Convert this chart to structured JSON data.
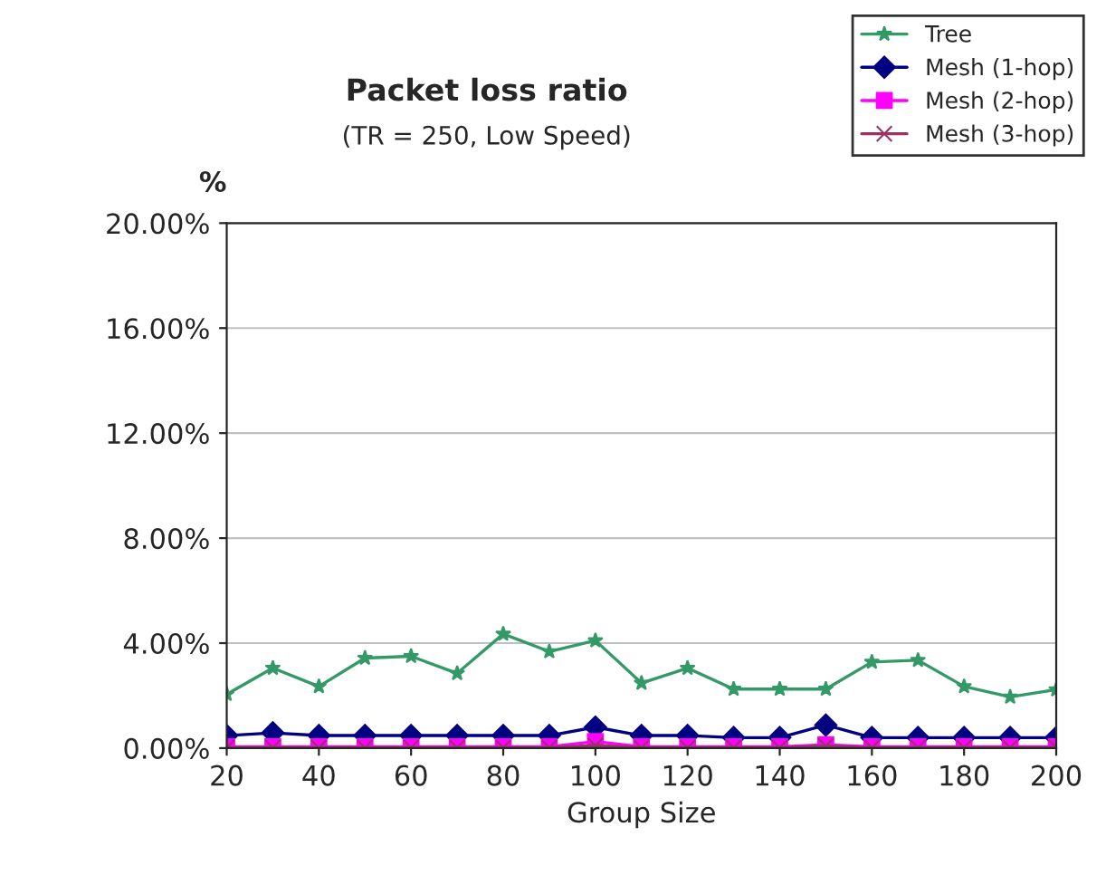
{
  "chart_data": {
    "type": "line",
    "title": "Packet loss ratio",
    "subtitle": "(TR = 250, Low Speed)",
    "xlabel": "Group Size",
    "ylabel": "%",
    "x": [
      20,
      30,
      40,
      50,
      60,
      70,
      80,
      90,
      100,
      110,
      120,
      130,
      140,
      150,
      160,
      170,
      180,
      190,
      200
    ],
    "xlim": [
      20,
      200
    ],
    "xticks": [
      20,
      40,
      60,
      80,
      100,
      120,
      140,
      160,
      180,
      200
    ],
    "ylim": [
      0,
      20
    ],
    "yticks": [
      {
        "value": 0,
        "label": "0.00%"
      },
      {
        "value": 4,
        "label": "4.00%"
      },
      {
        "value": 8,
        "label": "8.00%"
      },
      {
        "value": 12,
        "label": "12.00%"
      },
      {
        "value": 16,
        "label": "16.00%"
      },
      {
        "value": 20,
        "label": "20.00%"
      }
    ],
    "grid": "y",
    "legend": "top right",
    "series": [
      {
        "name": "Tree",
        "color": "#339966",
        "marker": "star",
        "values": [
          2.05,
          3.05,
          2.35,
          3.43,
          3.5,
          2.85,
          4.35,
          3.68,
          4.1,
          2.48,
          3.05,
          2.25,
          2.25,
          2.25,
          3.28,
          3.35,
          2.35,
          1.95,
          2.23
        ]
      },
      {
        "name": "Mesh (1-hop)",
        "color": "#000080",
        "marker": "diamond",
        "values": [
          0.48,
          0.58,
          0.48,
          0.48,
          0.48,
          0.48,
          0.48,
          0.48,
          0.8,
          0.48,
          0.48,
          0.4,
          0.4,
          0.88,
          0.4,
          0.4,
          0.4,
          0.4,
          0.4
        ]
      },
      {
        "name": "Mesh (2-hop)",
        "color": "#ff00ff",
        "marker": "square",
        "values": [
          0.05,
          0.05,
          0.05,
          0.05,
          0.05,
          0.05,
          0.05,
          0.05,
          0.25,
          0.05,
          0.05,
          0.05,
          0.05,
          0.13,
          0.05,
          0.05,
          0.05,
          0.05,
          0.05
        ]
      },
      {
        "name": "Mesh (3-hop)",
        "color": "#993366",
        "marker": "cross",
        "values": [
          0.02,
          0.02,
          0.02,
          0.02,
          0.02,
          0.02,
          0.02,
          0.02,
          0.1,
          0.02,
          0.02,
          0.02,
          0.02,
          0.08,
          0.02,
          0.02,
          0.02,
          0.02,
          0.02
        ]
      }
    ]
  }
}
